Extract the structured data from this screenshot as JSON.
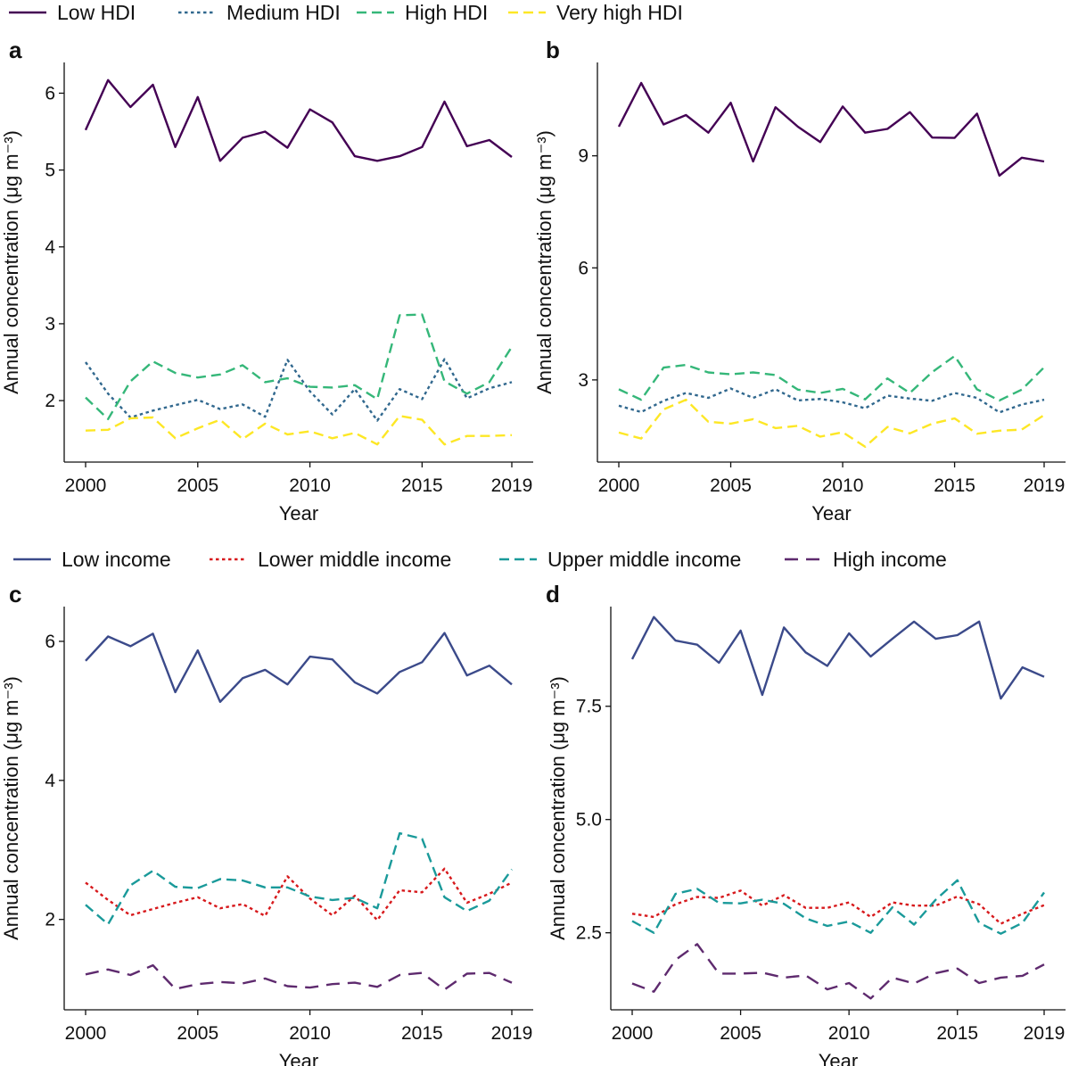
{
  "legends": {
    "hdi": [
      {
        "name": "Low HDI",
        "color": "#440154",
        "dash": "solid"
      },
      {
        "name": "Medium HDI",
        "color": "#31688e",
        "dash": "dotted"
      },
      {
        "name": "High HDI",
        "color": "#35b779",
        "dash": "dashed"
      },
      {
        "name": "Very high HDI",
        "color": "#fde725",
        "dash": "dashed"
      }
    ],
    "income": [
      {
        "name": "Low income",
        "color": "#3b4a8a",
        "dash": "solid"
      },
      {
        "name": "Lower middle income",
        "color": "#d7191c",
        "dash": "dotted"
      },
      {
        "name": "Upper middle income",
        "color": "#1a9a9a",
        "dash": "dashed"
      },
      {
        "name": "High income",
        "color": "#5e2a6e",
        "dash": "longdash"
      }
    ]
  },
  "chart_data": [
    {
      "panel": "a",
      "type": "line",
      "xlabel": "Year",
      "ylabel": "Annual concentration (μg m⁻³)",
      "x": [
        2000,
        2001,
        2002,
        2003,
        2004,
        2005,
        2006,
        2007,
        2008,
        2009,
        2010,
        2011,
        2012,
        2013,
        2014,
        2015,
        2016,
        2017,
        2018,
        2019
      ],
      "xticks": [
        2000,
        2005,
        2010,
        2015,
        2019
      ],
      "ylim": [
        1.2,
        6.4
      ],
      "yticks": [
        2,
        3,
        4,
        5,
        6
      ],
      "series": [
        {
          "name": "Low HDI",
          "values": [
            5.52,
            6.17,
            5.82,
            6.11,
            5.3,
            5.95,
            5.12,
            5.42,
            5.5,
            5.29,
            5.79,
            5.62,
            5.18,
            5.12,
            5.18,
            5.3,
            5.89,
            5.31,
            5.39,
            5.17
          ]
        },
        {
          "name": "Medium HDI",
          "values": [
            2.5,
            2.09,
            1.78,
            1.87,
            1.94,
            2.01,
            1.89,
            1.95,
            1.79,
            2.53,
            2.12,
            1.82,
            2.15,
            1.74,
            2.15,
            2.02,
            2.54,
            2.03,
            2.16,
            2.24
          ]
        },
        {
          "name": "High HDI",
          "values": [
            2.04,
            1.76,
            2.25,
            2.51,
            2.36,
            2.3,
            2.34,
            2.46,
            2.24,
            2.29,
            2.18,
            2.17,
            2.2,
            2.02,
            3.11,
            3.12,
            2.25,
            2.09,
            2.24,
            2.7
          ]
        },
        {
          "name": "Very high HDI",
          "values": [
            1.61,
            1.62,
            1.77,
            1.78,
            1.51,
            1.64,
            1.75,
            1.5,
            1.7,
            1.56,
            1.6,
            1.51,
            1.58,
            1.43,
            1.8,
            1.75,
            1.43,
            1.54,
            1.54,
            1.55
          ]
        }
      ]
    },
    {
      "panel": "b",
      "type": "line",
      "xlabel": "Year",
      "ylabel": "Annual concentration (μg m⁻³)",
      "x": [
        2000,
        2001,
        2002,
        2003,
        2004,
        2005,
        2006,
        2007,
        2008,
        2009,
        2010,
        2011,
        2012,
        2013,
        2014,
        2015,
        2016,
        2017,
        2018,
        2019
      ],
      "xticks": [
        2000,
        2005,
        2010,
        2015,
        2019
      ],
      "ylim": [
        0.8,
        11.5
      ],
      "yticks": [
        3,
        6,
        9
      ],
      "series": [
        {
          "name": "Low HDI",
          "values": [
            9.78,
            10.95,
            9.84,
            10.09,
            9.62,
            10.42,
            8.85,
            10.3,
            9.78,
            9.37,
            10.32,
            9.62,
            9.72,
            10.17,
            9.49,
            9.48,
            10.13,
            8.47,
            8.95,
            8.85
          ]
        },
        {
          "name": "Medium HDI",
          "values": [
            2.31,
            2.14,
            2.44,
            2.65,
            2.52,
            2.77,
            2.52,
            2.75,
            2.45,
            2.49,
            2.4,
            2.24,
            2.58,
            2.5,
            2.44,
            2.65,
            2.52,
            2.13,
            2.34,
            2.47
          ]
        },
        {
          "name": "High HDI",
          "values": [
            2.75,
            2.47,
            3.33,
            3.4,
            3.2,
            3.15,
            3.2,
            3.13,
            2.74,
            2.65,
            2.76,
            2.48,
            3.04,
            2.65,
            3.21,
            3.64,
            2.75,
            2.45,
            2.74,
            3.34
          ]
        },
        {
          "name": "Very high HDI",
          "values": [
            1.59,
            1.43,
            2.21,
            2.47,
            1.88,
            1.83,
            1.95,
            1.71,
            1.77,
            1.48,
            1.6,
            1.21,
            1.74,
            1.57,
            1.83,
            1.97,
            1.56,
            1.64,
            1.67,
            2.06
          ]
        }
      ]
    },
    {
      "panel": "c",
      "type": "line",
      "xlabel": "Year",
      "ylabel": "Annual concentration (μg m⁻³)",
      "x": [
        2000,
        2001,
        2002,
        2003,
        2004,
        2005,
        2006,
        2007,
        2008,
        2009,
        2010,
        2011,
        2012,
        2013,
        2014,
        2015,
        2016,
        2017,
        2018,
        2019
      ],
      "xticks": [
        2000,
        2005,
        2010,
        2015,
        2019
      ],
      "ylim": [
        0.7,
        6.5
      ],
      "yticks": [
        2,
        4,
        6
      ],
      "series": [
        {
          "name": "Low income",
          "values": [
            5.72,
            6.07,
            5.93,
            6.11,
            5.27,
            5.87,
            5.13,
            5.47,
            5.59,
            5.38,
            5.78,
            5.74,
            5.41,
            5.25,
            5.56,
            5.7,
            6.12,
            5.51,
            5.65,
            5.38
          ]
        },
        {
          "name": "Lower middle income",
          "values": [
            2.53,
            2.28,
            2.06,
            2.15,
            2.24,
            2.32,
            2.16,
            2.22,
            2.05,
            2.62,
            2.3,
            2.06,
            2.34,
            1.99,
            2.42,
            2.39,
            2.73,
            2.24,
            2.37,
            2.53
          ]
        },
        {
          "name": "Upper middle income",
          "values": [
            2.21,
            1.93,
            2.49,
            2.7,
            2.47,
            2.45,
            2.58,
            2.56,
            2.46,
            2.46,
            2.33,
            2.28,
            2.31,
            2.16,
            3.24,
            3.16,
            2.32,
            2.12,
            2.27,
            2.72
          ]
        },
        {
          "name": "High income",
          "values": [
            1.21,
            1.28,
            1.2,
            1.34,
            1.0,
            1.07,
            1.1,
            1.08,
            1.15,
            1.04,
            1.02,
            1.07,
            1.09,
            1.03,
            1.2,
            1.23,
            0.99,
            1.22,
            1.23,
            1.09
          ]
        }
      ]
    },
    {
      "panel": "d",
      "type": "line",
      "xlabel": "Year",
      "ylabel": "Annual concentration (μg m⁻³)",
      "x": [
        2000,
        2001,
        2002,
        2003,
        2004,
        2005,
        2006,
        2007,
        2008,
        2009,
        2010,
        2011,
        2012,
        2013,
        2014,
        2015,
        2016,
        2017,
        2018,
        2019
      ],
      "xticks": [
        2000,
        2005,
        2010,
        2015,
        2019
      ],
      "ylim": [
        0.8,
        9.7
      ],
      "yticks": [
        2.5,
        5.0,
        7.5
      ],
      "yticklabels": [
        "2.5",
        "5.0",
        "7.5"
      ],
      "series": [
        {
          "name": "Low income",
          "values": [
            8.54,
            9.47,
            8.95,
            8.86,
            8.46,
            9.17,
            7.75,
            9.24,
            8.69,
            8.39,
            9.11,
            8.6,
            8.99,
            9.37,
            8.99,
            9.07,
            9.37,
            7.67,
            8.36,
            8.15
          ]
        },
        {
          "name": "Lower middle income",
          "values": [
            2.92,
            2.85,
            3.13,
            3.29,
            3.27,
            3.43,
            3.1,
            3.33,
            3.05,
            3.05,
            3.17,
            2.85,
            3.17,
            3.1,
            3.1,
            3.3,
            3.13,
            2.7,
            2.92,
            3.11
          ]
        },
        {
          "name": "Upper middle income",
          "values": [
            2.76,
            2.5,
            3.36,
            3.47,
            3.16,
            3.15,
            3.23,
            3.14,
            2.82,
            2.65,
            2.75,
            2.5,
            3.06,
            2.68,
            3.23,
            3.66,
            2.72,
            2.48,
            2.72,
            3.39
          ]
        },
        {
          "name": "High income",
          "values": [
            1.38,
            1.2,
            1.9,
            2.25,
            1.6,
            1.6,
            1.62,
            1.51,
            1.56,
            1.25,
            1.39,
            1.05,
            1.51,
            1.38,
            1.61,
            1.71,
            1.39,
            1.51,
            1.55,
            1.8
          ]
        }
      ]
    }
  ]
}
